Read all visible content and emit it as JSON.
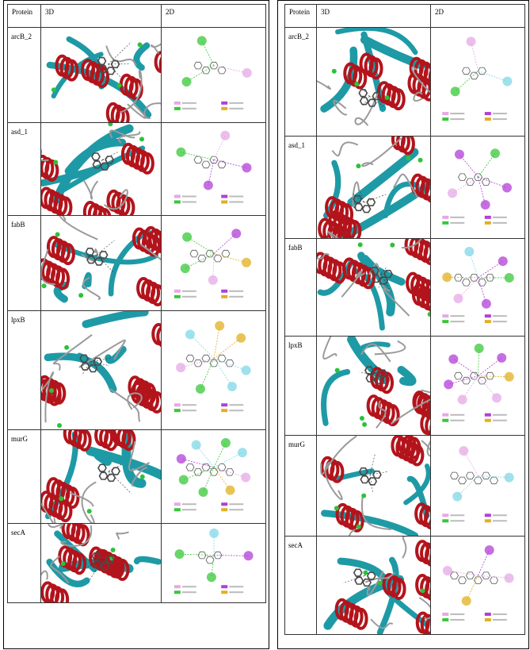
{
  "tables": [
    {
      "id": "left",
      "headers": {
        "protein": "Protein",
        "three_d": "3D",
        "two_d": "2D"
      },
      "rows": [
        {
          "protein": "arcB_2"
        },
        {
          "protein": "asd_1"
        },
        {
          "protein": "fabB"
        },
        {
          "protein": "lpxB"
        },
        {
          "protein": "murG"
        },
        {
          "protein": "secA"
        }
      ]
    },
    {
      "id": "right",
      "headers": {
        "protein": "Protein",
        "three_d": "3D",
        "two_d": "2D"
      },
      "rows": [
        {
          "protein": "arcB_2"
        },
        {
          "protein": "asd_1"
        },
        {
          "protein": "fabB"
        },
        {
          "protein": "lpxB"
        },
        {
          "protein": "murG"
        },
        {
          "protein": "secA"
        }
      ]
    }
  ],
  "colors": {
    "helix": "#b3141c",
    "sheet": "#1e9aa6",
    "coil": "#9a9a9a",
    "turn": "#2cc23a",
    "ligand": "#4a4a4a",
    "pi_alkyl": "#e6a8e6",
    "pi_sigma": "#b23fd6",
    "hbond": "#38c838",
    "pi_sulfur": "#e0b020",
    "halogen": "#7fd7e6"
  }
}
